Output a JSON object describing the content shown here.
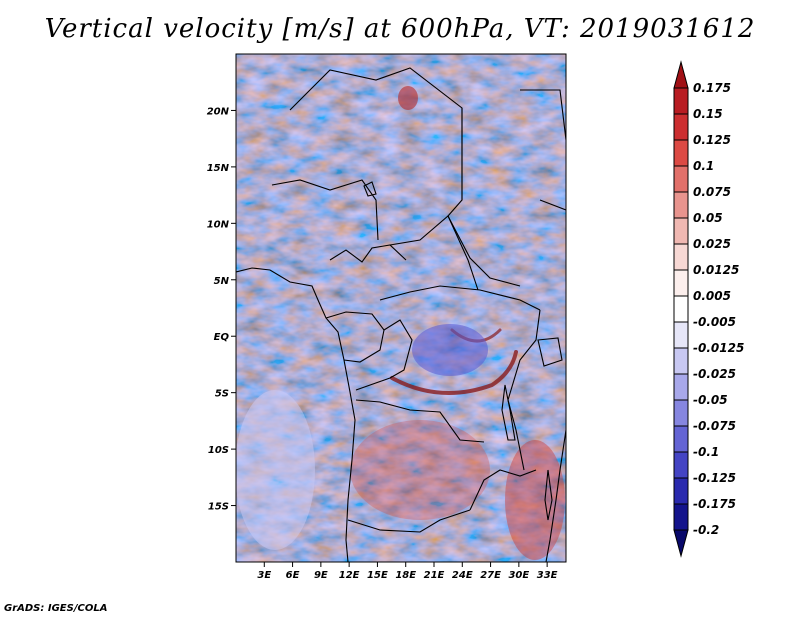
{
  "title": "Vertical velocity [m/s] at 600hPa, VT: 2019031612",
  "footer": "GrADS: IGES/COLA",
  "map": {
    "lat_labels": [
      "20N",
      "15N",
      "10N",
      "5N",
      "EQ",
      "5S",
      "10S",
      "15S"
    ],
    "lat_values": [
      20,
      15,
      10,
      5,
      0,
      -5,
      -10,
      -15
    ],
    "lon_labels": [
      "3E",
      "6E",
      "9E",
      "12E",
      "15E",
      "18E",
      "21E",
      "24E",
      "27E",
      "30E",
      "33E"
    ],
    "lon_values": [
      3,
      6,
      9,
      12,
      15,
      18,
      21,
      24,
      27,
      30,
      33
    ],
    "lon_range": [
      0,
      35
    ],
    "lat_range": [
      -20,
      25
    ]
  },
  "colorbar": {
    "labels": [
      "0.175",
      "0.15",
      "0.125",
      "0.1",
      "0.075",
      "0.05",
      "0.025",
      "0.0125",
      "0.005",
      "-0.005",
      "-0.0125",
      "-0.025",
      "-0.05",
      "-0.075",
      "-0.1",
      "-0.125",
      "-0.175",
      "-0.2"
    ],
    "colors": [
      "#a01015",
      "#b81c22",
      "#cc2e30",
      "#dc4a44",
      "#e2706a",
      "#e8948e",
      "#f0b8b2",
      "#f7d8d4",
      "#fcefed",
      "#ffffff",
      "#e6e6f8",
      "#c8c8f2",
      "#a8a8ea",
      "#8686e0",
      "#6464d4",
      "#4444c4",
      "#2a2aae",
      "#14148c",
      "#08086a"
    ]
  }
}
